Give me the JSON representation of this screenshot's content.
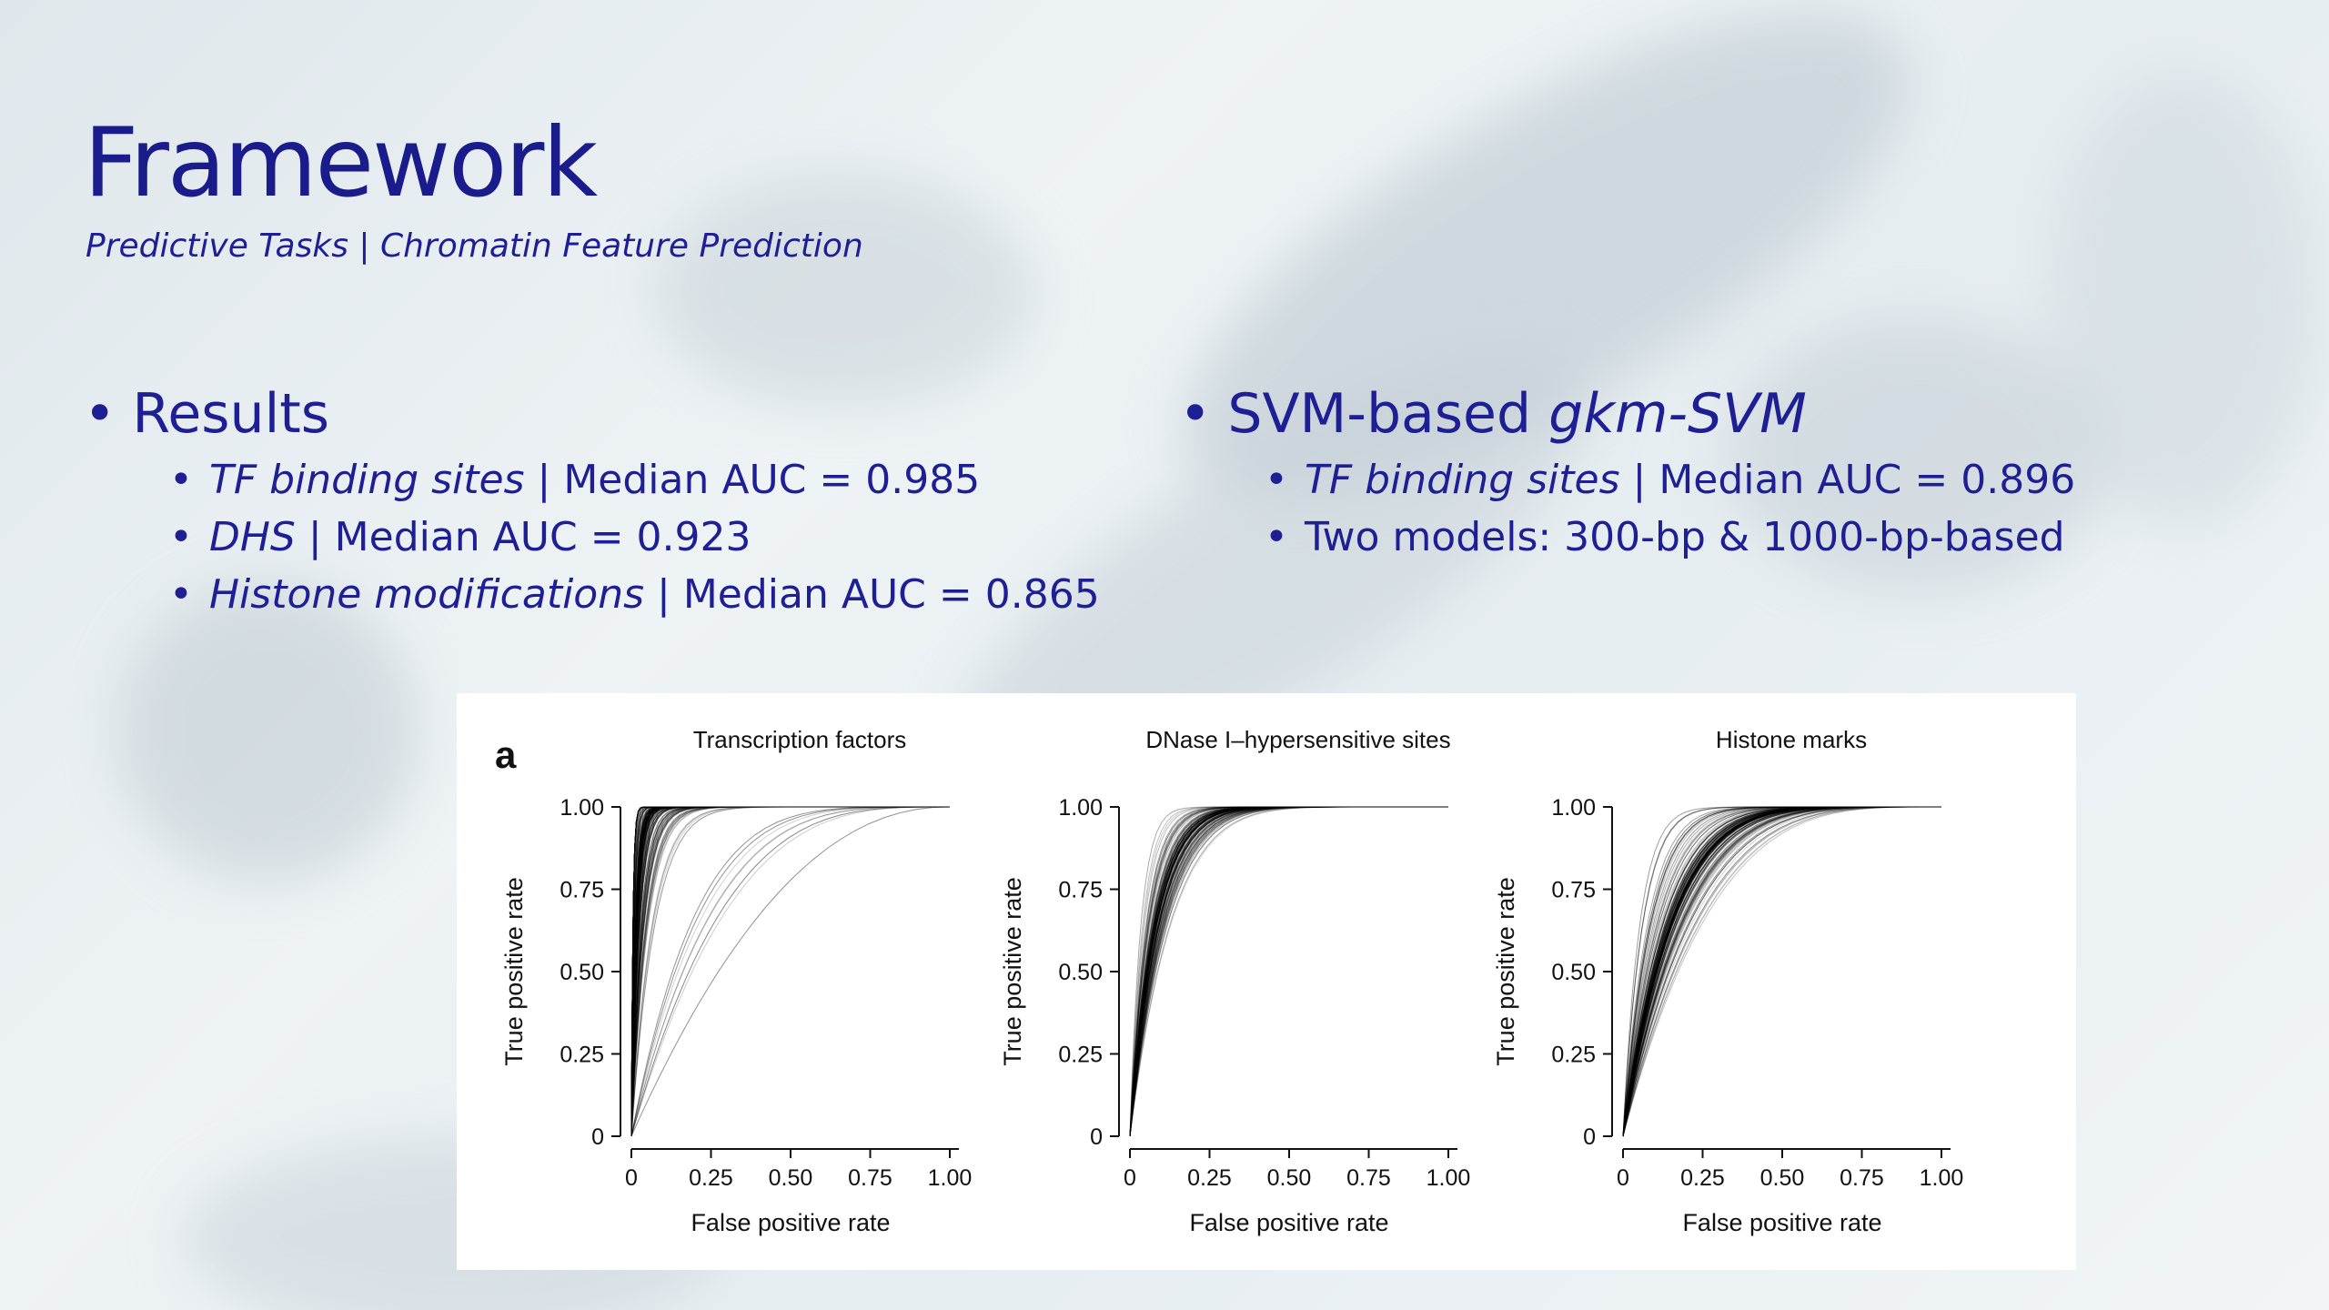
{
  "slide": {
    "title": "Framework",
    "subtitle": "Predictive Tasks | Chromatin Feature Prediction",
    "left": {
      "heading": "Results",
      "items": [
        {
          "label": "TF binding sites",
          "value": " | Median AUC = 0.985"
        },
        {
          "label": "DHS",
          "value": " | Median AUC = 0.923"
        },
        {
          "label": "Histone modifications",
          "value": " | Median AUC = 0.865"
        }
      ]
    },
    "right": {
      "heading_prefix": "SVM-based ",
      "heading_italic": "gkm-SVM",
      "items": [
        {
          "label": "TF binding sites",
          "value": " | Median AUC = 0.896"
        },
        {
          "label": "",
          "value": "Two models: 300-bp & 1000-bp-based"
        }
      ]
    },
    "bullet_char": "•"
  },
  "chart_data": {
    "panel_label": "a",
    "charts": [
      {
        "type": "line",
        "title": "Transcription factors",
        "xlabel": "False positive rate",
        "ylabel": "True positive rate",
        "xlim": [
          0,
          1
        ],
        "ylim": [
          0,
          1
        ],
        "xticks": [
          "0",
          "0.25",
          "0.50",
          "0.75",
          "1.00"
        ],
        "yticks": [
          "0",
          "0.25",
          "0.50",
          "0.75",
          "1.00"
        ],
        "median_auc": 0.985,
        "curve_count": 200,
        "color": "#000000"
      },
      {
        "type": "line",
        "title": "DNase I–hypersensitive sites",
        "xlabel": "False positive rate",
        "ylabel": "True positive rate",
        "xlim": [
          0,
          1
        ],
        "ylim": [
          0,
          1
        ],
        "xticks": [
          "0",
          "0.25",
          "0.50",
          "0.75",
          "1.00"
        ],
        "yticks": [
          "0",
          "0.25",
          "0.50",
          "0.75",
          "1.00"
        ],
        "median_auc": 0.923,
        "curve_count": 120,
        "color": "#000000"
      },
      {
        "type": "line",
        "title": "Histone marks",
        "xlabel": "False positive rate",
        "ylabel": "True positive rate",
        "xlim": [
          0,
          1
        ],
        "ylim": [
          0,
          1
        ],
        "xticks": [
          "0",
          "0.25",
          "0.50",
          "0.75",
          "1.00"
        ],
        "yticks": [
          "0",
          "0.25",
          "0.50",
          "0.75",
          "1.00"
        ],
        "median_auc": 0.865,
        "curve_count": 140,
        "color": "#000000"
      }
    ]
  }
}
